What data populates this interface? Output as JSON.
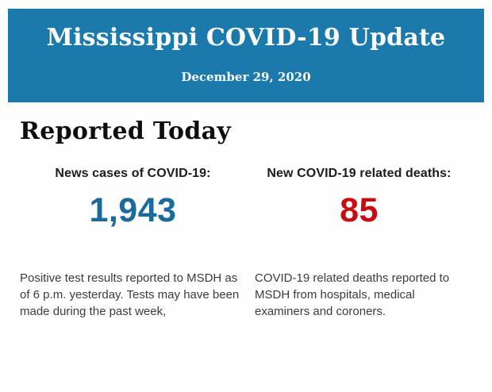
{
  "banner": {
    "title": "Mississippi COVID-19 Update",
    "date": "December 29, 2020",
    "bg_color": "#1c79ab",
    "text_color": "#fcfcfc"
  },
  "section": {
    "heading": "Reported Today"
  },
  "stats": [
    {
      "label": "News cases of COVID-19:",
      "value": "1,943",
      "value_color": "#1b6a9c",
      "description": "Positive test results reported to MSDH as of 6 p.m. yesterday. Tests may have been made during the past week,"
    },
    {
      "label": "New COVID-19 related deaths:",
      "value": "85",
      "value_color": "#c50d13",
      "description": "COVID-19 related deaths reported to MSDH from hospitals, medical examiners and coroners."
    }
  ]
}
